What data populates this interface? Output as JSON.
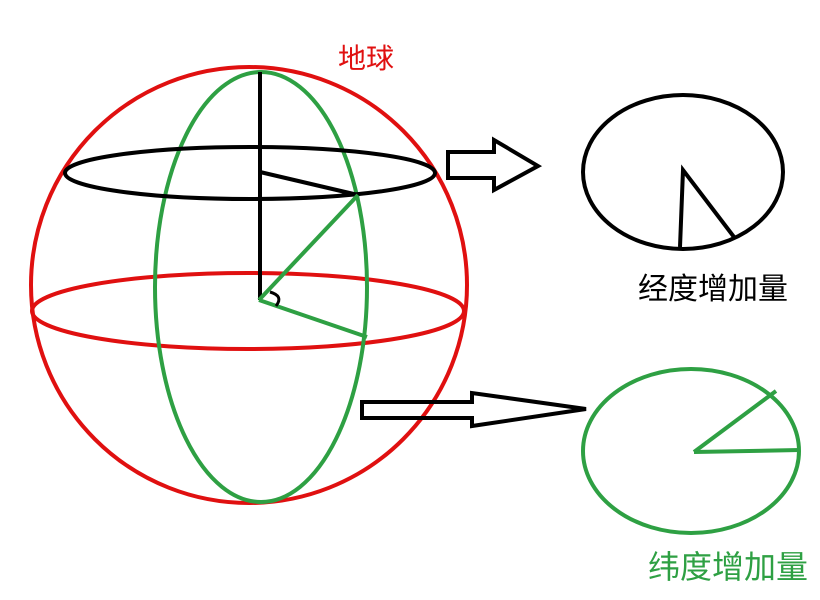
{
  "labels": {
    "earth": "地球",
    "longitude_increment": "经度增加量",
    "latitude_increment": "纬度增加量"
  },
  "colors": {
    "earth": "#e01010",
    "meridian": "#2ea043",
    "parallel": "#000000",
    "arrow": "#000000",
    "longitude_label": "#000000",
    "latitude_label": "#2ea043"
  }
}
